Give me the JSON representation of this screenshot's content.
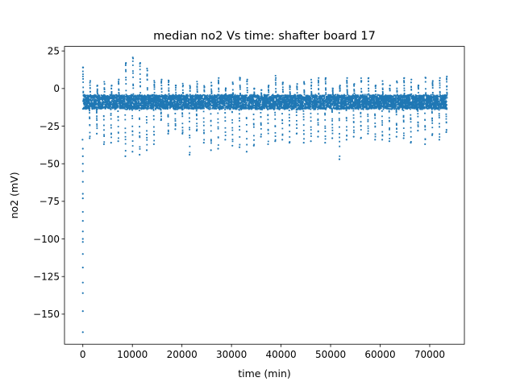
{
  "chart_data": {
    "type": "scatter",
    "title": "median no2 Vs time: shafter board 17",
    "xlabel": "time (min)",
    "ylabel": "no2 (mV)",
    "xlim": [
      -3700,
      77000
    ],
    "ylim": [
      -170,
      28
    ],
    "xticks": [
      0,
      10000,
      20000,
      30000,
      40000,
      50000,
      60000,
      70000
    ],
    "yticks": [
      -150,
      -125,
      -100,
      -75,
      -50,
      -25,
      0,
      25
    ],
    "grid": false,
    "legend": "none",
    "series_color": "#1f77b4",
    "x_range_data": [
      0,
      73500
    ],
    "baseline_level": -9,
    "daily_cycle_min": 1440,
    "initial_spike_points": [
      {
        "x": 0,
        "y": -162
      },
      {
        "x": 0,
        "y": -148
      },
      {
        "x": 0,
        "y": -136
      },
      {
        "x": 0,
        "y": -129
      },
      {
        "x": 0,
        "y": -119
      },
      {
        "x": 0,
        "y": -110
      },
      {
        "x": 0,
        "y": -102
      },
      {
        "x": 0,
        "y": -100
      },
      {
        "x": 0,
        "y": -95
      },
      {
        "x": 0,
        "y": -88
      },
      {
        "x": 0,
        "y": -82
      },
      {
        "x": 0,
        "y": -73
      },
      {
        "x": 0,
        "y": -70
      },
      {
        "x": 0,
        "y": -62
      },
      {
        "x": 0,
        "y": -55
      },
      {
        "x": 0,
        "y": -50
      },
      {
        "x": 0,
        "y": -45
      },
      {
        "x": 0,
        "y": -40
      }
    ],
    "daily_extremes": [
      {
        "x": 0,
        "max": 14,
        "min": -34
      },
      {
        "x": 1440,
        "max": 5,
        "min": -33
      },
      {
        "x": 2880,
        "max": 2,
        "min": -30
      },
      {
        "x": 4320,
        "max": 3,
        "min": -37
      },
      {
        "x": 5760,
        "max": 2,
        "min": -36
      },
      {
        "x": 7200,
        "max": 6,
        "min": -35
      },
      {
        "x": 8640,
        "max": 17,
        "min": -45
      },
      {
        "x": 10080,
        "max": 20,
        "min": -42
      },
      {
        "x": 11520,
        "max": 17,
        "min": -44
      },
      {
        "x": 12960,
        "max": 12,
        "min": -41
      },
      {
        "x": 14400,
        "max": 4,
        "min": -37
      },
      {
        "x": 15840,
        "max": 6,
        "min": -21
      },
      {
        "x": 17280,
        "max": 5,
        "min": -30
      },
      {
        "x": 18720,
        "max": 2,
        "min": -27
      },
      {
        "x": 20160,
        "max": 2,
        "min": -30
      },
      {
        "x": 21600,
        "max": 1,
        "min": -44
      },
      {
        "x": 23040,
        "max": 3,
        "min": -28
      },
      {
        "x": 24480,
        "max": 1,
        "min": -36
      },
      {
        "x": 25920,
        "max": 2,
        "min": -41
      },
      {
        "x": 27360,
        "max": 7,
        "min": -40
      },
      {
        "x": 28800,
        "max": 0,
        "min": -34
      },
      {
        "x": 30240,
        "max": 3,
        "min": -38
      },
      {
        "x": 31680,
        "max": 7,
        "min": -39
      },
      {
        "x": 33120,
        "max": 6,
        "min": -42
      },
      {
        "x": 34560,
        "max": 0,
        "min": -38
      },
      {
        "x": 36000,
        "max": -1,
        "min": -32
      },
      {
        "x": 37440,
        "max": 2,
        "min": -37
      },
      {
        "x": 38880,
        "max": 7,
        "min": -35
      },
      {
        "x": 40320,
        "max": 4,
        "min": -34
      },
      {
        "x": 41760,
        "max": 1,
        "min": -36
      },
      {
        "x": 43200,
        "max": 3,
        "min": -30
      },
      {
        "x": 44640,
        "max": 3,
        "min": -36
      },
      {
        "x": 46080,
        "max": 4,
        "min": -35
      },
      {
        "x": 47520,
        "max": 7,
        "min": -32
      },
      {
        "x": 48960,
        "max": 7,
        "min": -36
      },
      {
        "x": 50400,
        "max": 0,
        "min": -33
      },
      {
        "x": 51840,
        "max": 2,
        "min": -47
      },
      {
        "x": 53280,
        "max": 7,
        "min": -34
      },
      {
        "x": 54720,
        "max": 3,
        "min": -32
      },
      {
        "x": 56160,
        "max": 5,
        "min": -33
      },
      {
        "x": 57600,
        "max": 7,
        "min": -30
      },
      {
        "x": 59040,
        "max": 2,
        "min": -34
      },
      {
        "x": 60480,
        "max": 3,
        "min": -34
      },
      {
        "x": 61920,
        "max": 2,
        "min": -35
      },
      {
        "x": 63360,
        "max": 4,
        "min": -32
      },
      {
        "x": 64800,
        "max": 7,
        "min": -33
      },
      {
        "x": 66240,
        "max": 6,
        "min": -36
      },
      {
        "x": 67680,
        "max": 2,
        "min": -28
      },
      {
        "x": 69120,
        "max": 7,
        "min": -37
      },
      {
        "x": 70560,
        "max": 5,
        "min": -31
      },
      {
        "x": 72000,
        "max": 7,
        "min": -34
      },
      {
        "x": 73400,
        "max": 8,
        "min": -29
      }
    ]
  }
}
